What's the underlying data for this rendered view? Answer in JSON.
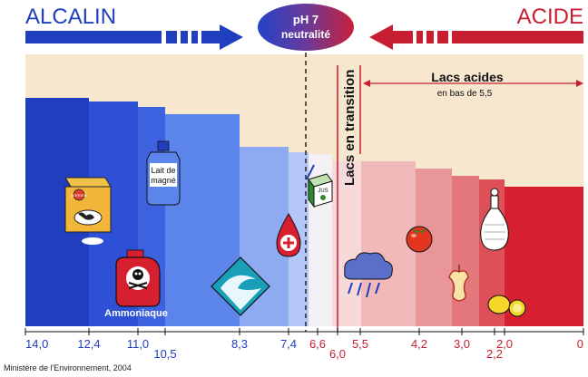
{
  "header": {
    "left_label": "ALCALIN",
    "right_label": "ACIDE",
    "center_line1": "pH 7",
    "center_line2": "neutralité"
  },
  "annotations": {
    "transition_label": "Lacs en transition",
    "acid_lakes_title": "Lacs acides",
    "acid_lakes_sub": "en bas de 5,5"
  },
  "items": {
    "lait_de_magne_line1": "Lait de",
    "lait_de_magne_line2": "magné",
    "ammoniaque": "Ammoniaque",
    "vinaigre": "Vinaigre",
    "milk_carton_brand": "BORDEN",
    "juice_box_text": "JUS"
  },
  "axis": {
    "ticks": [
      "14,0",
      "12,4",
      "11,0",
      "10,5",
      "8,3",
      "7,4",
      "6,6",
      "6,0",
      "5,5",
      "4,2",
      "3,0",
      "2,2",
      "2,0",
      "0"
    ]
  },
  "colors": {
    "alkaline_dark": "#1f3fbf",
    "alkaline_mid": "#4b7ce8",
    "alkaline_light": "#c9d7fb",
    "acid_dark": "#d61f2f",
    "acid_mid": "#e36a72",
    "acid_light": "#f5d0d1",
    "background_band": "#f7e7cf"
  },
  "footer": {
    "credit": "Ministère de l'Environnement, 2004"
  }
}
